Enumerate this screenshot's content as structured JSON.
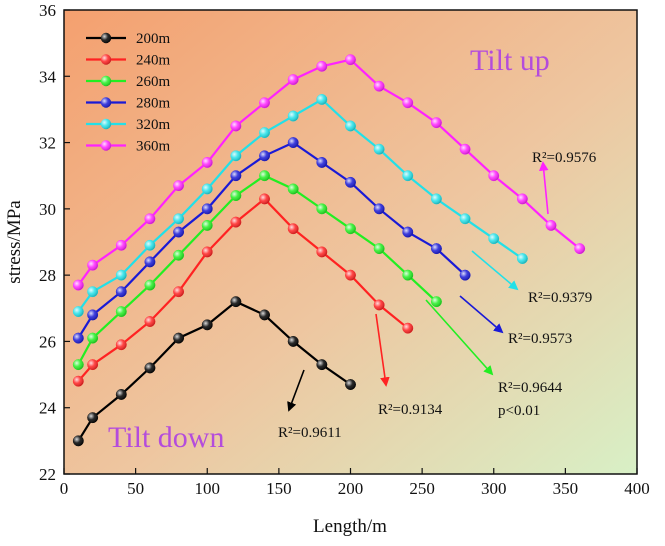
{
  "chart_data": {
    "type": "line",
    "xlabel": "Length/m",
    "ylabel": "stress/MPa",
    "xlim": [
      0,
      400
    ],
    "ylim": [
      22,
      36
    ],
    "xticks": [
      0,
      50,
      100,
      150,
      200,
      250,
      300,
      350,
      400
    ],
    "yticks": [
      22,
      24,
      26,
      28,
      30,
      32,
      34,
      36
    ],
    "legend_position": "top-left",
    "series": [
      {
        "name": "200m",
        "color": "#000000",
        "x": [
          10,
          20,
          40,
          60,
          80,
          100,
          120,
          140,
          160,
          180,
          200
        ],
        "y": [
          23.0,
          23.7,
          24.4,
          25.2,
          26.1,
          26.5,
          27.2,
          26.8,
          26.0,
          25.3,
          24.7
        ]
      },
      {
        "name": "240m",
        "color": "#ff2222",
        "x": [
          10,
          20,
          40,
          60,
          80,
          100,
          120,
          140,
          160,
          180,
          200,
          220,
          240
        ],
        "y": [
          24.8,
          25.3,
          25.9,
          26.6,
          27.5,
          28.7,
          29.6,
          30.3,
          29.4,
          28.7,
          28.0,
          27.1,
          26.4
        ]
      },
      {
        "name": "260m",
        "color": "#22ee22",
        "x": [
          10,
          20,
          40,
          60,
          80,
          100,
          120,
          140,
          160,
          180,
          200,
          220,
          240,
          260
        ],
        "y": [
          25.3,
          26.1,
          26.9,
          27.7,
          28.6,
          29.5,
          30.4,
          31.0,
          30.6,
          30.0,
          29.4,
          28.8,
          28.0,
          27.2
        ]
      },
      {
        "name": "280m",
        "color": "#1a1ad6",
        "x": [
          10,
          20,
          40,
          60,
          80,
          100,
          120,
          140,
          160,
          180,
          200,
          220,
          240,
          260,
          280
        ],
        "y": [
          26.1,
          26.8,
          27.5,
          28.4,
          29.3,
          30.0,
          31.0,
          31.6,
          32.0,
          31.4,
          30.8,
          30.0,
          29.3,
          28.8,
          28.0
        ]
      },
      {
        "name": "320m",
        "color": "#22e0e8",
        "x": [
          10,
          20,
          40,
          60,
          80,
          100,
          120,
          140,
          160,
          180,
          200,
          220,
          240,
          260,
          280,
          300,
          320
        ],
        "y": [
          26.9,
          27.5,
          28.0,
          28.9,
          29.7,
          30.6,
          31.6,
          32.3,
          32.8,
          33.3,
          32.5,
          31.8,
          31.0,
          30.3,
          29.7,
          29.1,
          28.5
        ]
      },
      {
        "name": "360m",
        "color": "#ff22ff",
        "x": [
          10,
          20,
          40,
          60,
          80,
          100,
          120,
          140,
          160,
          180,
          200,
          220,
          240,
          260,
          280,
          300,
          320,
          340,
          360
        ],
        "y": [
          27.7,
          28.3,
          28.9,
          29.7,
          30.7,
          31.4,
          32.5,
          33.2,
          33.9,
          34.3,
          34.5,
          33.7,
          33.2,
          32.6,
          31.8,
          31.0,
          30.3,
          29.5,
          28.8
        ]
      }
    ],
    "annotations": {
      "tilt_up": "Tilt up",
      "tilt_down": "Tilt down",
      "r2": [
        {
          "series": "200m",
          "text": "R²=0.9611"
        },
        {
          "series": "240m",
          "text": "R²=0.9134"
        },
        {
          "series": "260m",
          "text": "R²=0.9644",
          "note": "p<0.01"
        },
        {
          "series": "280m",
          "text": "R²=0.9573"
        },
        {
          "series": "320m",
          "text": "R²=0.9379"
        },
        {
          "series": "360m",
          "text": "R²=0.9576"
        }
      ]
    }
  }
}
